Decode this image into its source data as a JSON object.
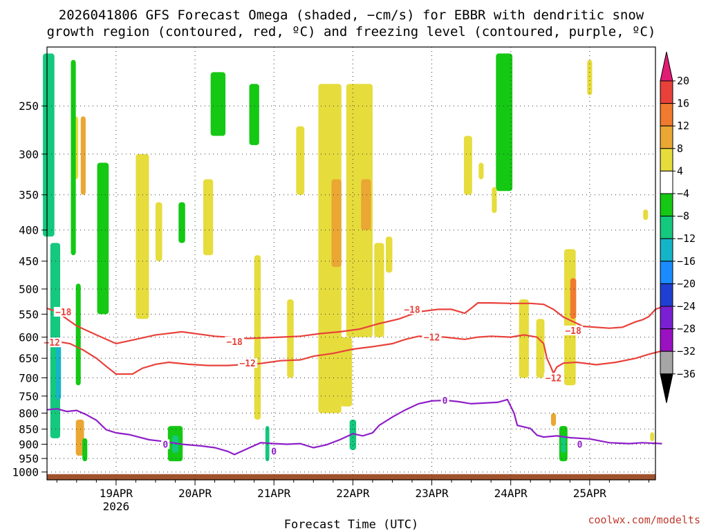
{
  "chart_data": {
    "type": "heatmap",
    "title_lines": [
      "2026041806 GFS Forecast Omega (shaded, −cm/s) for EBBR with dendritic snow",
      "growth region (contoured, red, ºC) and freezing level (contoured, purple, ºC)"
    ],
    "xlabel": "Forecast Time (UTC)",
    "x_start_hours_before_19apr": 21,
    "x_end_hours_after_25apr": 20,
    "x_ticks": [
      {
        "label": "19APR",
        "sub": "2026",
        "day": 0
      },
      {
        "label": "20APR",
        "sub": "",
        "day": 1
      },
      {
        "label": "21APR",
        "sub": "",
        "day": 2
      },
      {
        "label": "22APR",
        "sub": "",
        "day": 3
      },
      {
        "label": "23APR",
        "sub": "",
        "day": 4
      },
      {
        "label": "24APR",
        "sub": "",
        "day": 5
      },
      {
        "label": "25APR",
        "sub": "",
        "day": 6
      }
    ],
    "y_ticks": [
      250,
      300,
      350,
      400,
      450,
      500,
      550,
      600,
      650,
      700,
      750,
      800,
      850,
      900,
      950,
      1000
    ],
    "y_range_hpa": [
      200,
      1030
    ],
    "colorbar": {
      "labels": [
        "20",
        "16",
        "12",
        "8",
        "4",
        "−4",
        "−8",
        "−12",
        "−16",
        "−20",
        "−24",
        "−28",
        "−32",
        "−36"
      ],
      "colors": [
        "#e8413a",
        "#f07a2e",
        "#eaa733",
        "#e6dc3c",
        "#ffffff",
        "#14c814",
        "#14c87d",
        "#14b4c8",
        "#1a8cff",
        "#1f3fd1",
        "#7a1fd1",
        "#9a11c1",
        "#a6a6a6"
      ],
      "top_arrow_color": "#e21b74",
      "bottom_arrow_color": "#000000"
    },
    "omega_regions": [
      {
        "t": -20.5,
        "p0": 205,
        "p1": 410,
        "w": 3.5,
        "color": "#14c87d"
      },
      {
        "t": -18.5,
        "p0": 420,
        "p1": 880,
        "w": 3.0,
        "color": "#14c87d"
      },
      {
        "t": -17.5,
        "p0": 600,
        "p1": 760,
        "w": 1.5,
        "color": "#14b4c8"
      },
      {
        "t": -12.5,
        "p0": 260,
        "p1": 330,
        "w": 2.0,
        "color": "#e6dc3c"
      },
      {
        "t": -13,
        "p0": 210,
        "p1": 440,
        "w": 1.5,
        "color": "#14c814"
      },
      {
        "t": -10,
        "p0": 260,
        "p1": 350,
        "w": 1.5,
        "color": "#eaa733"
      },
      {
        "t": -11.5,
        "p0": 490,
        "p1": 720,
        "w": 1.5,
        "color": "#14c814"
      },
      {
        "t": -11,
        "p0": 820,
        "p1": 940,
        "w": 2.5,
        "color": "#eaa733"
      },
      {
        "t": -9.5,
        "p0": 880,
        "p1": 960,
        "w": 1.5,
        "color": "#14c814"
      },
      {
        "t": -4,
        "p0": 310,
        "p1": 550,
        "w": 3.5,
        "color": "#14c814"
      },
      {
        "t": 8,
        "p0": 300,
        "p1": 560,
        "w": 4.0,
        "color": "#e6dc3c"
      },
      {
        "t": 13,
        "p0": 360,
        "p1": 450,
        "w": 2.0,
        "color": "#e6dc3c"
      },
      {
        "t": 20,
        "p0": 360,
        "p1": 420,
        "w": 2.0,
        "color": "#14c814"
      },
      {
        "t": 18,
        "p0": 840,
        "p1": 960,
        "w": 4.5,
        "color": "#14c814"
      },
      {
        "t": 18,
        "p0": 870,
        "p1": 930,
        "w": 2.0,
        "color": "#14c87d"
      },
      {
        "t": 31,
        "p0": 220,
        "p1": 280,
        "w": 4.5,
        "color": "#14c814"
      },
      {
        "t": 28,
        "p0": 330,
        "p1": 440,
        "w": 3.0,
        "color": "#e6dc3c"
      },
      {
        "t": 42,
        "p0": 230,
        "p1": 290,
        "w": 3.0,
        "color": "#14c814"
      },
      {
        "t": 43,
        "p0": 440,
        "p1": 820,
        "w": 2.0,
        "color": "#e6dc3c"
      },
      {
        "t": 46,
        "p0": 840,
        "p1": 960,
        "w": 1.2,
        "color": "#14c87d"
      },
      {
        "t": 53,
        "p0": 520,
        "p1": 700,
        "w": 2.0,
        "color": "#e6dc3c"
      },
      {
        "t": 56,
        "p0": 270,
        "p1": 350,
        "w": 2.5,
        "color": "#e6dc3c"
      },
      {
        "t": 65,
        "p0": 230,
        "p1": 800,
        "w": 7.0,
        "color": "#e6dc3c"
      },
      {
        "t": 67,
        "p0": 330,
        "p1": 460,
        "w": 3.0,
        "color": "#eaa733"
      },
      {
        "t": 70,
        "p0": 600,
        "p1": 780,
        "w": 3.5,
        "color": "#e6dc3c"
      },
      {
        "t": 72,
        "p0": 820,
        "p1": 920,
        "w": 2.0,
        "color": "#14c87d"
      },
      {
        "t": 74,
        "p0": 230,
        "p1": 600,
        "w": 8.0,
        "color": "#e6dc3c"
      },
      {
        "t": 76,
        "p0": 330,
        "p1": 400,
        "w": 3.0,
        "color": "#eaa733"
      },
      {
        "t": 80,
        "p0": 420,
        "p1": 600,
        "w": 3.0,
        "color": "#e6dc3c"
      },
      {
        "t": 83,
        "p0": 410,
        "p1": 470,
        "w": 2.0,
        "color": "#e6dc3c"
      },
      {
        "t": 107,
        "p0": 280,
        "p1": 350,
        "w": 2.5,
        "color": "#e6dc3c"
      },
      {
        "t": 111,
        "p0": 310,
        "p1": 330,
        "w": 1.5,
        "color": "#e6dc3c"
      },
      {
        "t": 118,
        "p0": 205,
        "p1": 345,
        "w": 5.0,
        "color": "#14c814"
      },
      {
        "t": 115,
        "p0": 340,
        "p1": 375,
        "w": 1.5,
        "color": "#e6dc3c"
      },
      {
        "t": 124,
        "p0": 520,
        "p1": 700,
        "w": 3.0,
        "color": "#e6dc3c"
      },
      {
        "t": 129,
        "p0": 560,
        "p1": 700,
        "w": 2.5,
        "color": "#e6dc3c"
      },
      {
        "t": 133,
        "p0": 800,
        "p1": 840,
        "w": 1.5,
        "color": "#eaa733"
      },
      {
        "t": 136,
        "p0": 840,
        "p1": 960,
        "w": 2.5,
        "color": "#14c814"
      },
      {
        "t": 136,
        "p0": 870,
        "p1": 930,
        "w": 1.5,
        "color": "#14c87d"
      },
      {
        "t": 138,
        "p0": 430,
        "p1": 720,
        "w": 3.5,
        "color": "#e6dc3c"
      },
      {
        "t": 139,
        "p0": 480,
        "p1": 560,
        "w": 1.8,
        "color": "#f07a2e"
      },
      {
        "t": 144,
        "p0": 210,
        "p1": 240,
        "w": 1.5,
        "color": "#e6dc3c"
      },
      {
        "t": 161,
        "p0": 370,
        "p1": 385,
        "w": 1.5,
        "color": "#e6dc3c"
      },
      {
        "t": 163,
        "p0": 860,
        "p1": 890,
        "w": 1.2,
        "color": "#e6dc3c"
      }
    ],
    "contours": [
      {
        "level": -18,
        "color": "#e8413a",
        "label": "−18",
        "label_points": [
          {
            "t": -16,
            "p": 545
          },
          {
            "t": 36,
            "p": 610
          },
          {
            "t": 90,
            "p": 540
          },
          {
            "t": 139,
            "p": 585
          }
        ],
        "points": [
          [
            -21,
            538
          ],
          [
            -18,
            545
          ],
          [
            -15,
            560
          ],
          [
            -12,
            575
          ],
          [
            -6,
            595
          ],
          [
            0,
            615
          ],
          [
            6,
            605
          ],
          [
            12,
            595
          ],
          [
            20,
            588
          ],
          [
            30,
            598
          ],
          [
            40,
            603
          ],
          [
            50,
            600
          ],
          [
            56,
            598
          ],
          [
            62,
            592
          ],
          [
            68,
            588
          ],
          [
            74,
            582
          ],
          [
            80,
            570
          ],
          [
            86,
            560
          ],
          [
            92,
            545
          ],
          [
            98,
            540
          ],
          [
            102,
            540
          ],
          [
            106,
            548
          ],
          [
            108,
            538
          ],
          [
            110,
            527
          ],
          [
            114,
            527
          ],
          [
            120,
            528
          ],
          [
            126,
            528
          ],
          [
            130,
            530
          ],
          [
            133,
            540
          ],
          [
            136,
            556
          ],
          [
            142,
            576
          ],
          [
            150,
            580
          ],
          [
            154,
            578
          ],
          [
            158,
            566
          ],
          [
            160,
            562
          ],
          [
            162,
            555
          ],
          [
            164,
            540
          ],
          [
            166,
            535
          ]
        ]
      },
      {
        "level": -12,
        "color": "#e8413a",
        "label": "−12",
        "label_points": [
          {
            "t": -19.5,
            "p": 612
          },
          {
            "t": 40,
            "p": 662
          },
          {
            "t": 96,
            "p": 600
          },
          {
            "t": 133,
            "p": 700
          }
        ],
        "points": [
          [
            -21,
            612
          ],
          [
            -18,
            610
          ],
          [
            -14,
            615
          ],
          [
            -10,
            630
          ],
          [
            -6,
            650
          ],
          [
            -3,
            670
          ],
          [
            0,
            690
          ],
          [
            5,
            690
          ],
          [
            8,
            675
          ],
          [
            12,
            665
          ],
          [
            16,
            660
          ],
          [
            22,
            665
          ],
          [
            28,
            668
          ],
          [
            34,
            668
          ],
          [
            44,
            663
          ],
          [
            50,
            656
          ],
          [
            56,
            654
          ],
          [
            60,
            645
          ],
          [
            66,
            638
          ],
          [
            72,
            628
          ],
          [
            78,
            622
          ],
          [
            84,
            615
          ],
          [
            88,
            605
          ],
          [
            92,
            598
          ],
          [
            100,
            600
          ],
          [
            106,
            605
          ],
          [
            110,
            600
          ],
          [
            114,
            598
          ],
          [
            120,
            600
          ],
          [
            124,
            595
          ],
          [
            128,
            600
          ],
          [
            130,
            615
          ],
          [
            131,
            650
          ],
          [
            132,
            668
          ],
          [
            133,
            688
          ],
          [
            134,
            672
          ],
          [
            136,
            662
          ],
          [
            140,
            660
          ],
          [
            146,
            666
          ],
          [
            152,
            660
          ],
          [
            158,
            650
          ],
          [
            162,
            640
          ],
          [
            166,
            632
          ]
        ]
      },
      {
        "level": 0,
        "color": "#8e1ec8",
        "label": "0",
        "label_points": [
          {
            "t": 15,
            "p": 900
          },
          {
            "t": 48,
            "p": 924
          },
          {
            "t": 100,
            "p": 762
          },
          {
            "t": 141,
            "p": 900
          }
        ],
        "points": [
          [
            -21,
            790
          ],
          [
            -18,
            787
          ],
          [
            -15,
            795
          ],
          [
            -12,
            792
          ],
          [
            -9,
            805
          ],
          [
            -6,
            822
          ],
          [
            -3,
            852
          ],
          [
            0,
            862
          ],
          [
            4,
            868
          ],
          [
            10,
            885
          ],
          [
            14,
            890
          ],
          [
            20,
            900
          ],
          [
            26,
            906
          ],
          [
            30,
            912
          ],
          [
            34,
            925
          ],
          [
            36,
            936
          ],
          [
            40,
            915
          ],
          [
            44,
            895
          ],
          [
            48,
            898
          ],
          [
            52,
            900
          ],
          [
            56,
            898
          ],
          [
            60,
            912
          ],
          [
            64,
            902
          ],
          [
            68,
            885
          ],
          [
            72,
            865
          ],
          [
            75,
            872
          ],
          [
            78,
            862
          ],
          [
            80,
            838
          ],
          [
            84,
            812
          ],
          [
            88,
            790
          ],
          [
            92,
            772
          ],
          [
            96,
            764
          ],
          [
            100,
            762
          ],
          [
            104,
            766
          ],
          [
            108,
            772
          ],
          [
            112,
            770
          ],
          [
            116,
            768
          ],
          [
            119,
            760
          ],
          [
            121,
            800
          ],
          [
            122,
            838
          ],
          [
            126,
            848
          ],
          [
            128,
            870
          ],
          [
            130,
            876
          ],
          [
            134,
            872
          ],
          [
            138,
            878
          ],
          [
            144,
            882
          ],
          [
            150,
            895
          ],
          [
            156,
            898
          ],
          [
            160,
            895
          ],
          [
            166,
            898
          ]
        ]
      }
    ],
    "credit": "coolwx.com/modelts"
  }
}
